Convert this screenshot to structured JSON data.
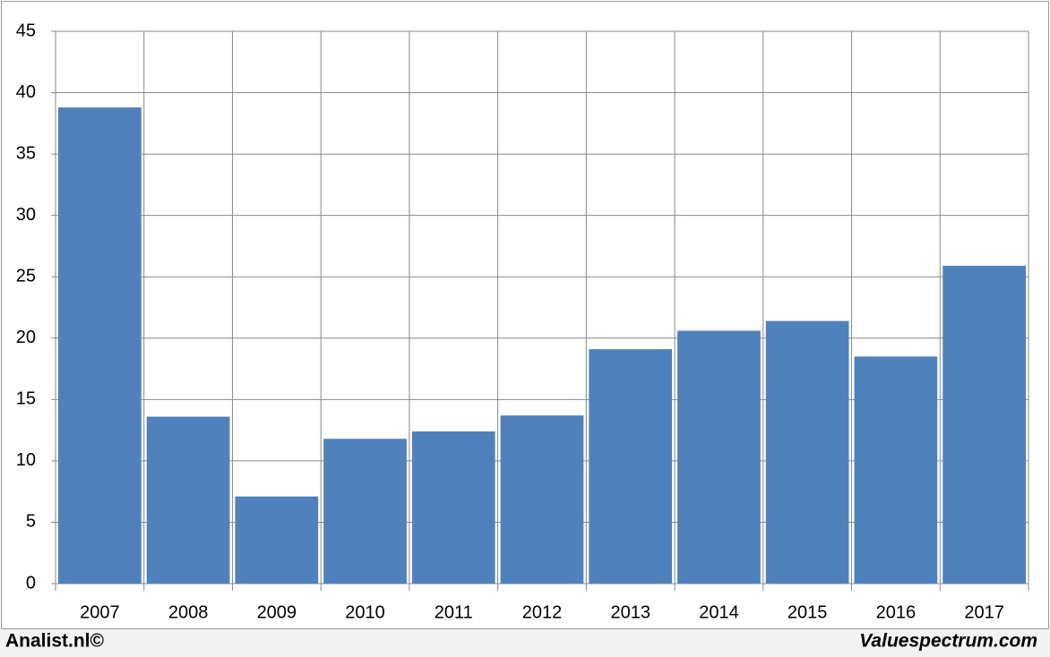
{
  "chart_data": {
    "type": "bar",
    "categories": [
      "2007",
      "2008",
      "2009",
      "2010",
      "2011",
      "2012",
      "2013",
      "2014",
      "2015",
      "2016",
      "2017"
    ],
    "values": [
      38.8,
      13.6,
      7.1,
      11.8,
      12.4,
      13.7,
      19.1,
      20.6,
      21.4,
      18.5,
      25.9
    ],
    "color": "#4f81bd",
    "ylim": [
      0,
      45
    ],
    "yticks": [
      0,
      5,
      10,
      15,
      20,
      25,
      30,
      35,
      40,
      45
    ],
    "grid": true,
    "annotations": [
      "Analist.nl©",
      "Valuespectrum.com"
    ]
  }
}
